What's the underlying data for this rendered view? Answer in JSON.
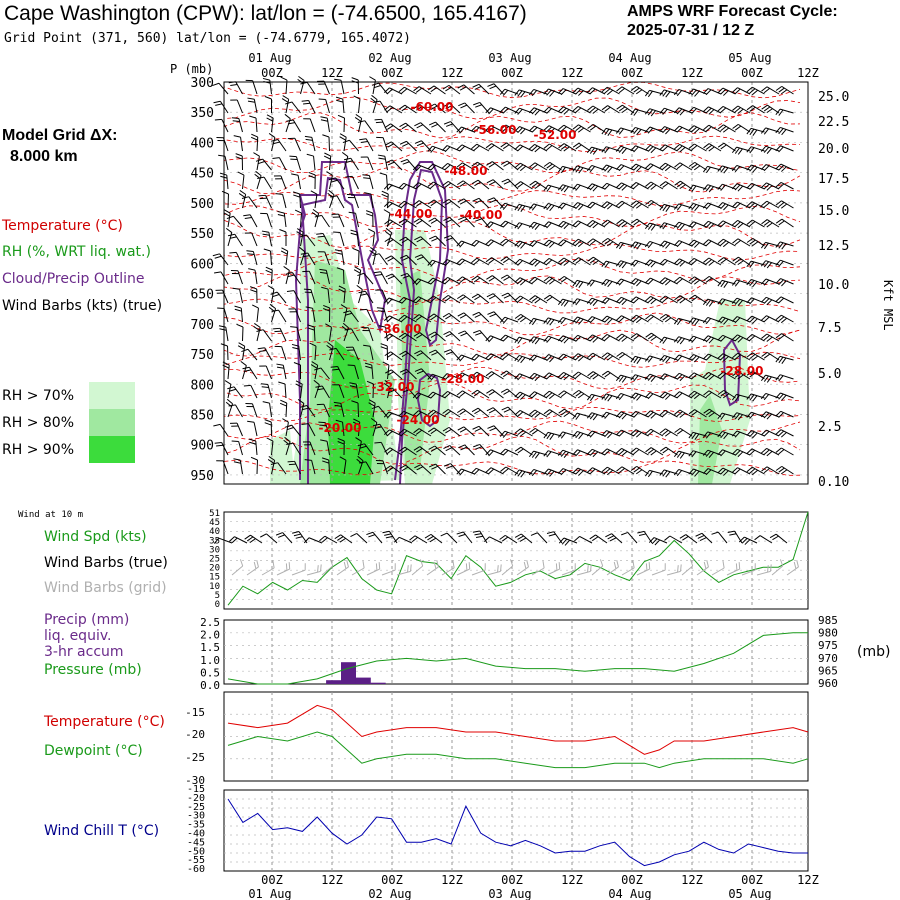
{
  "header": {
    "title": "Cape Washington (CPW):  lat/lon = (-74.6500, 165.4167)",
    "grid_point": "Grid Point (371, 560) lat/lon = (-74.6779, 165.4072)",
    "forecast_label": "AMPS WRF Forecast Cycle:",
    "cycle": "2025-07-31 / 12  Z"
  },
  "legend": {
    "model_grid": "Model Grid ΔX:",
    "grid_value": "8.000 km",
    "temperature": "Temperature (°C)",
    "rh": "RH (%, WRT liq. wat.)",
    "cloud": "Cloud/Precip Outline",
    "wind_barbs": "Wind Barbs (kts) (true)",
    "rh70": "RH > 70%",
    "rh80": "RH > 80%",
    "rh90": "RH > 90%",
    "colors": {
      "rh70": "#d2f7d2",
      "rh80": "#a0e8a0",
      "rh90": "#3cdc3c",
      "temp": "#e00000",
      "cloud": "#6a2a8a"
    }
  },
  "time_axis": {
    "hours": [
      "00Z",
      "12Z",
      "00Z",
      "12Z",
      "00Z",
      "12Z",
      "00Z",
      "12Z",
      "00Z",
      "12Z"
    ],
    "dates": [
      "01 Aug",
      "02 Aug",
      "03 Aug",
      "04 Aug",
      "05 Aug"
    ],
    "hours_bottom": [
      "00Z",
      "12Z",
      "00Z",
      "12Z",
      "00Z",
      "12Z",
      "00Z",
      "12Z",
      "00Z",
      "12Z"
    ]
  },
  "panel1": {
    "p_label": "P (mb)",
    "p_ticks": [
      "300",
      "350",
      "400",
      "450",
      "500",
      "550",
      "600",
      "650",
      "700",
      "750",
      "800",
      "850",
      "900",
      "950"
    ],
    "kft_label": "Kft MSL",
    "kft_ticks": [
      "25.0",
      "22.5",
      "20.0",
      "17.5",
      "15.0",
      "12.5",
      "10.0",
      "7.5",
      "5.0",
      "2.5",
      "0.10"
    ],
    "temp_labels": [
      "-60.00",
      "-56.00",
      "-52.00",
      "-48.00",
      "-44.00",
      "-40.00",
      "-36.00",
      "-32.00",
      "-28.00",
      "-24.00",
      "-20.00",
      "-28.00"
    ]
  },
  "panel2": {
    "header": "Wind at 10 m",
    "spd_label": "Wind Spd (kts)",
    "barbs_true": "Wind Barbs (true)",
    "barbs_grid": "Wind Barbs (grid)",
    "y_ticks": [
      "51",
      "45",
      "40",
      "35",
      "30",
      "25",
      "20",
      "15",
      "10",
      "5",
      "0"
    ]
  },
  "panel3": {
    "precip_label": "Precip (mm)",
    "liq_label": "liq. equiv.",
    "accum_label": "3-hr accum",
    "pressure_label": "Pressure (mb)",
    "mb_unit": "(mb)",
    "left_ticks": [
      "2.5",
      "2.0",
      "1.5",
      "1.0",
      "0.5",
      "0.0"
    ],
    "right_ticks": [
      "985",
      "980",
      "975",
      "970",
      "965",
      "960"
    ]
  },
  "panel4": {
    "temp_label": "Temperature (°C)",
    "dew_label": "Dewpoint (°C)",
    "y_ticks": [
      "-15",
      "-20",
      "-25",
      "-30"
    ]
  },
  "panel5": {
    "chill_label": "Wind Chill T (°C)",
    "y_ticks": [
      "-15",
      "-20",
      "-25",
      "-30",
      "-35",
      "-40",
      "-45",
      "-50",
      "-55",
      "-60"
    ]
  },
  "chart_data": [
    {
      "type": "line",
      "title": "Wind Spd (kts)",
      "x": [
        0,
        3,
        6,
        9,
        12,
        15,
        18,
        21,
        24,
        27,
        30,
        33,
        36,
        39,
        42,
        45,
        48,
        51,
        54,
        57,
        60,
        63,
        66,
        69,
        72,
        75,
        78,
        81,
        84,
        87,
        90,
        93,
        96,
        99,
        102,
        105,
        108,
        111,
        114,
        117
      ],
      "series": [
        {
          "name": "Wind Spd (kts)",
          "values": [
            2,
            12,
            8,
            14,
            10,
            15,
            14,
            22,
            27,
            16,
            10,
            8,
            28,
            25,
            24,
            16,
            28,
            22,
            12,
            14,
            18,
            20,
            16,
            18,
            24,
            22,
            18,
            15,
            25,
            28,
            36,
            29,
            20,
            14,
            18,
            20,
            22,
            22,
            26,
            51
          ]
        }
      ],
      "ylim": [
        0,
        51
      ]
    },
    {
      "type": "bar",
      "title": "Precip (mm)",
      "x": [
        21,
        24,
        27,
        30
      ],
      "values": [
        0.15,
        0.85,
        0.25,
        0.05
      ],
      "ylim": [
        0,
        2.5
      ]
    },
    {
      "type": "line",
      "title": "Pressure (mb)",
      "x": [
        0,
        6,
        12,
        18,
        24,
        30,
        36,
        42,
        48,
        54,
        60,
        66,
        72,
        78,
        84,
        90,
        96,
        102,
        108,
        114,
        117
      ],
      "series": [
        {
          "name": "Pressure (mb)",
          "values": [
            962,
            960,
            960,
            962,
            966,
            969,
            970,
            969,
            970,
            967,
            966,
            966,
            965,
            966,
            966,
            965,
            968,
            972,
            979,
            980,
            980
          ]
        }
      ],
      "ylim": [
        960,
        985
      ]
    },
    {
      "type": "line",
      "title": "Temperature (°C)",
      "x": [
        0,
        6,
        12,
        18,
        21,
        24,
        27,
        30,
        36,
        42,
        48,
        54,
        60,
        66,
        72,
        78,
        84,
        87,
        90,
        96,
        102,
        108,
        114,
        117
      ],
      "series": [
        {
          "name": "Temperature (°C)",
          "values": [
            -17,
            -18,
            -17,
            -13,
            -14,
            -17,
            -20,
            -19,
            -18,
            -18,
            -19,
            -19,
            -20,
            -21,
            -21,
            -20,
            -24,
            -23,
            -21,
            -21,
            -20,
            -19,
            -18,
            -19
          ]
        },
        {
          "name": "Dewpoint (°C)",
          "values": [
            -22,
            -20,
            -21,
            -19,
            -20,
            -23,
            -26,
            -25,
            -24,
            -24,
            -25,
            -25,
            -26,
            -27,
            -27,
            -26,
            -26,
            -27,
            -26,
            -25,
            -25,
            -25,
            -26,
            -25
          ]
        }
      ],
      "ylim": [
        -30,
        -10
      ]
    },
    {
      "type": "line",
      "title": "Wind Chill T (°C)",
      "x": [
        0,
        3,
        6,
        9,
        12,
        15,
        18,
        21,
        24,
        27,
        30,
        33,
        36,
        39,
        42,
        45,
        48,
        51,
        54,
        57,
        60,
        63,
        66,
        69,
        72,
        75,
        78,
        81,
        84,
        87,
        90,
        93,
        96,
        99,
        102,
        105,
        108,
        111,
        114,
        117
      ],
      "series": [
        {
          "name": "Wind Chill T (°C)",
          "values": [
            -20,
            -33,
            -28,
            -37,
            -36,
            -38,
            -30,
            -39,
            -45,
            -40,
            -30,
            -31,
            -44,
            -44,
            -42,
            -45,
            -24,
            -39,
            -44,
            -46,
            -43,
            -46,
            -50,
            -49,
            -49,
            -46,
            -44,
            -52,
            -57,
            -55,
            -51,
            -49,
            -44,
            -48,
            -50,
            -45,
            -47,
            -49,
            -50,
            -50
          ]
        }
      ],
      "ylim": [
        -60,
        -15
      ]
    }
  ]
}
